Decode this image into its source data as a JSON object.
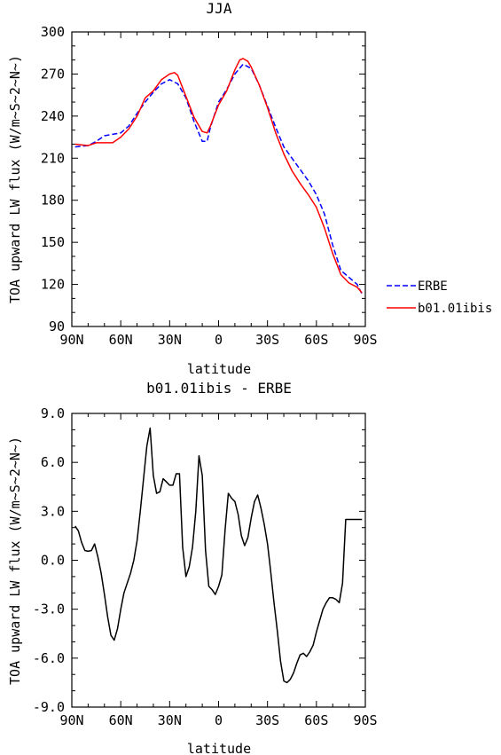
{
  "chart_data": [
    {
      "type": "line",
      "title": "JJA",
      "xlabel": "latitude",
      "ylabel": "TOA upward LW flux (W/m~S~2~N~)",
      "xlim": [
        -90,
        90
      ],
      "ylim": [
        90,
        300
      ],
      "x_ticks": [
        -90,
        -60,
        -30,
        0,
        30,
        60,
        90
      ],
      "x_tick_labels": [
        "90N",
        "60N",
        "30N",
        "0",
        "30S",
        "60S",
        "90S"
      ],
      "y_ticks": [
        90,
        120,
        150,
        180,
        210,
        240,
        270,
        300
      ],
      "y_tick_labels": [
        "90",
        "120",
        "150",
        "180",
        "210",
        "240",
        "270",
        "300"
      ],
      "legend_position": "right",
      "series": [
        {
          "name": "ERBE",
          "color": "#0000ff",
          "dash": "dashed",
          "x": [
            -88,
            -80,
            -75,
            -70,
            -60,
            -55,
            -50,
            -45,
            -40,
            -35,
            -30,
            -25,
            -20,
            -15,
            -10,
            -7,
            -5,
            0,
            5,
            10,
            15,
            20,
            25,
            30,
            35,
            40,
            45,
            50,
            55,
            60,
            65,
            70,
            75,
            80,
            85,
            88
          ],
          "y": [
            218,
            219,
            222,
            226,
            228,
            233,
            242,
            250,
            257,
            263,
            266,
            263,
            253,
            236,
            222,
            222,
            232,
            250,
            259,
            270,
            277,
            274,
            262,
            247,
            232,
            218,
            210,
            202,
            194,
            184,
            170,
            148,
            130,
            125,
            120,
            113
          ]
        },
        {
          "name": "b01.01ibis",
          "color": "#ff0000",
          "dash": "solid",
          "x": [
            -88,
            -80,
            -75,
            -70,
            -65,
            -60,
            -55,
            -50,
            -45,
            -40,
            -35,
            -30,
            -27,
            -25,
            -20,
            -15,
            -10,
            -7,
            -5,
            0,
            5,
            10,
            13,
            15,
            18,
            20,
            25,
            30,
            35,
            40,
            45,
            50,
            55,
            60,
            65,
            70,
            75,
            80,
            85,
            88
          ],
          "y": [
            220,
            219,
            221,
            221,
            221,
            225,
            231,
            240,
            253,
            258,
            266,
            270,
            271,
            269,
            254,
            239,
            229,
            228,
            233,
            248,
            258,
            273,
            280,
            281,
            279,
            275,
            262,
            246,
            228,
            213,
            201,
            192,
            184,
            175,
            160,
            142,
            127,
            121,
            118,
            114
          ]
        }
      ]
    },
    {
      "type": "line",
      "title": "b01.01ibis - ERBE",
      "xlabel": "latitude",
      "ylabel": "TOA upward LW flux (W/m~S~2~N~)",
      "xlim": [
        -90,
        90
      ],
      "ylim": [
        -9,
        9
      ],
      "x_ticks": [
        -90,
        -60,
        -30,
        0,
        30,
        60,
        90
      ],
      "x_tick_labels": [
        "90N",
        "60N",
        "30N",
        "0",
        "30S",
        "60S",
        "90S"
      ],
      "y_ticks": [
        -9,
        -6,
        -3,
        0,
        3,
        6,
        9
      ],
      "y_tick_labels": [
        "-9.0",
        "-6.0",
        "-3.0",
        "0.0",
        "3.0",
        "6.0",
        "9.0"
      ],
      "series": [
        {
          "color": "#000000",
          "x": [
            -88,
            -86,
            -84,
            -82,
            -80,
            -78,
            -76,
            -74,
            -72,
            -70,
            -68,
            -66,
            -64,
            -62,
            -60,
            -58,
            -56,
            -54,
            -52,
            -50,
            -48,
            -46,
            -44,
            -42,
            -40,
            -38,
            -36,
            -34,
            -32,
            -30,
            -28,
            -26,
            -24,
            -22,
            -20,
            -18,
            -16,
            -14,
            -12,
            -10,
            -8,
            -6,
            -4,
            -2,
            0,
            2,
            4,
            6,
            8,
            10,
            12,
            14,
            16,
            18,
            20,
            22,
            24,
            26,
            28,
            30,
            32,
            34,
            36,
            38,
            40,
            42,
            44,
            46,
            48,
            50,
            52,
            54,
            56,
            58,
            60,
            62,
            64,
            66,
            68,
            70,
            72,
            74,
            76,
            78,
            80,
            82,
            84,
            86,
            88
          ],
          "y": [
            2.1,
            1.8,
            1.1,
            0.6,
            0.55,
            0.6,
            1.0,
            0.2,
            -0.8,
            -2.1,
            -3.5,
            -4.6,
            -4.9,
            -4.2,
            -3.0,
            -2.0,
            -1.4,
            -0.8,
            0.0,
            1.2,
            3.0,
            5.0,
            7.0,
            8.1,
            5.2,
            4.1,
            4.2,
            5.0,
            4.8,
            4.6,
            4.6,
            5.3,
            5.3,
            0.8,
            -1.0,
            -0.4,
            0.8,
            3.0,
            6.4,
            5.2,
            0.6,
            -1.6,
            -1.8,
            -2.1,
            -1.6,
            -0.9,
            1.9,
            4.1,
            3.8,
            3.6,
            2.8,
            1.5,
            0.9,
            1.4,
            2.6,
            3.6,
            4.0,
            3.2,
            2.2,
            1.0,
            -0.7,
            -2.6,
            -4.3,
            -6.2,
            -7.4,
            -7.5,
            -7.3,
            -6.9,
            -6.3,
            -5.8,
            -5.7,
            -5.9,
            -5.6,
            -5.2,
            -4.4,
            -3.7,
            -3.0,
            -2.6,
            -2.3,
            -2.3,
            -2.4,
            -2.6,
            -1.4,
            2.5,
            2.5,
            2.5,
            2.5,
            2.5,
            2.5
          ]
        }
      ]
    }
  ]
}
